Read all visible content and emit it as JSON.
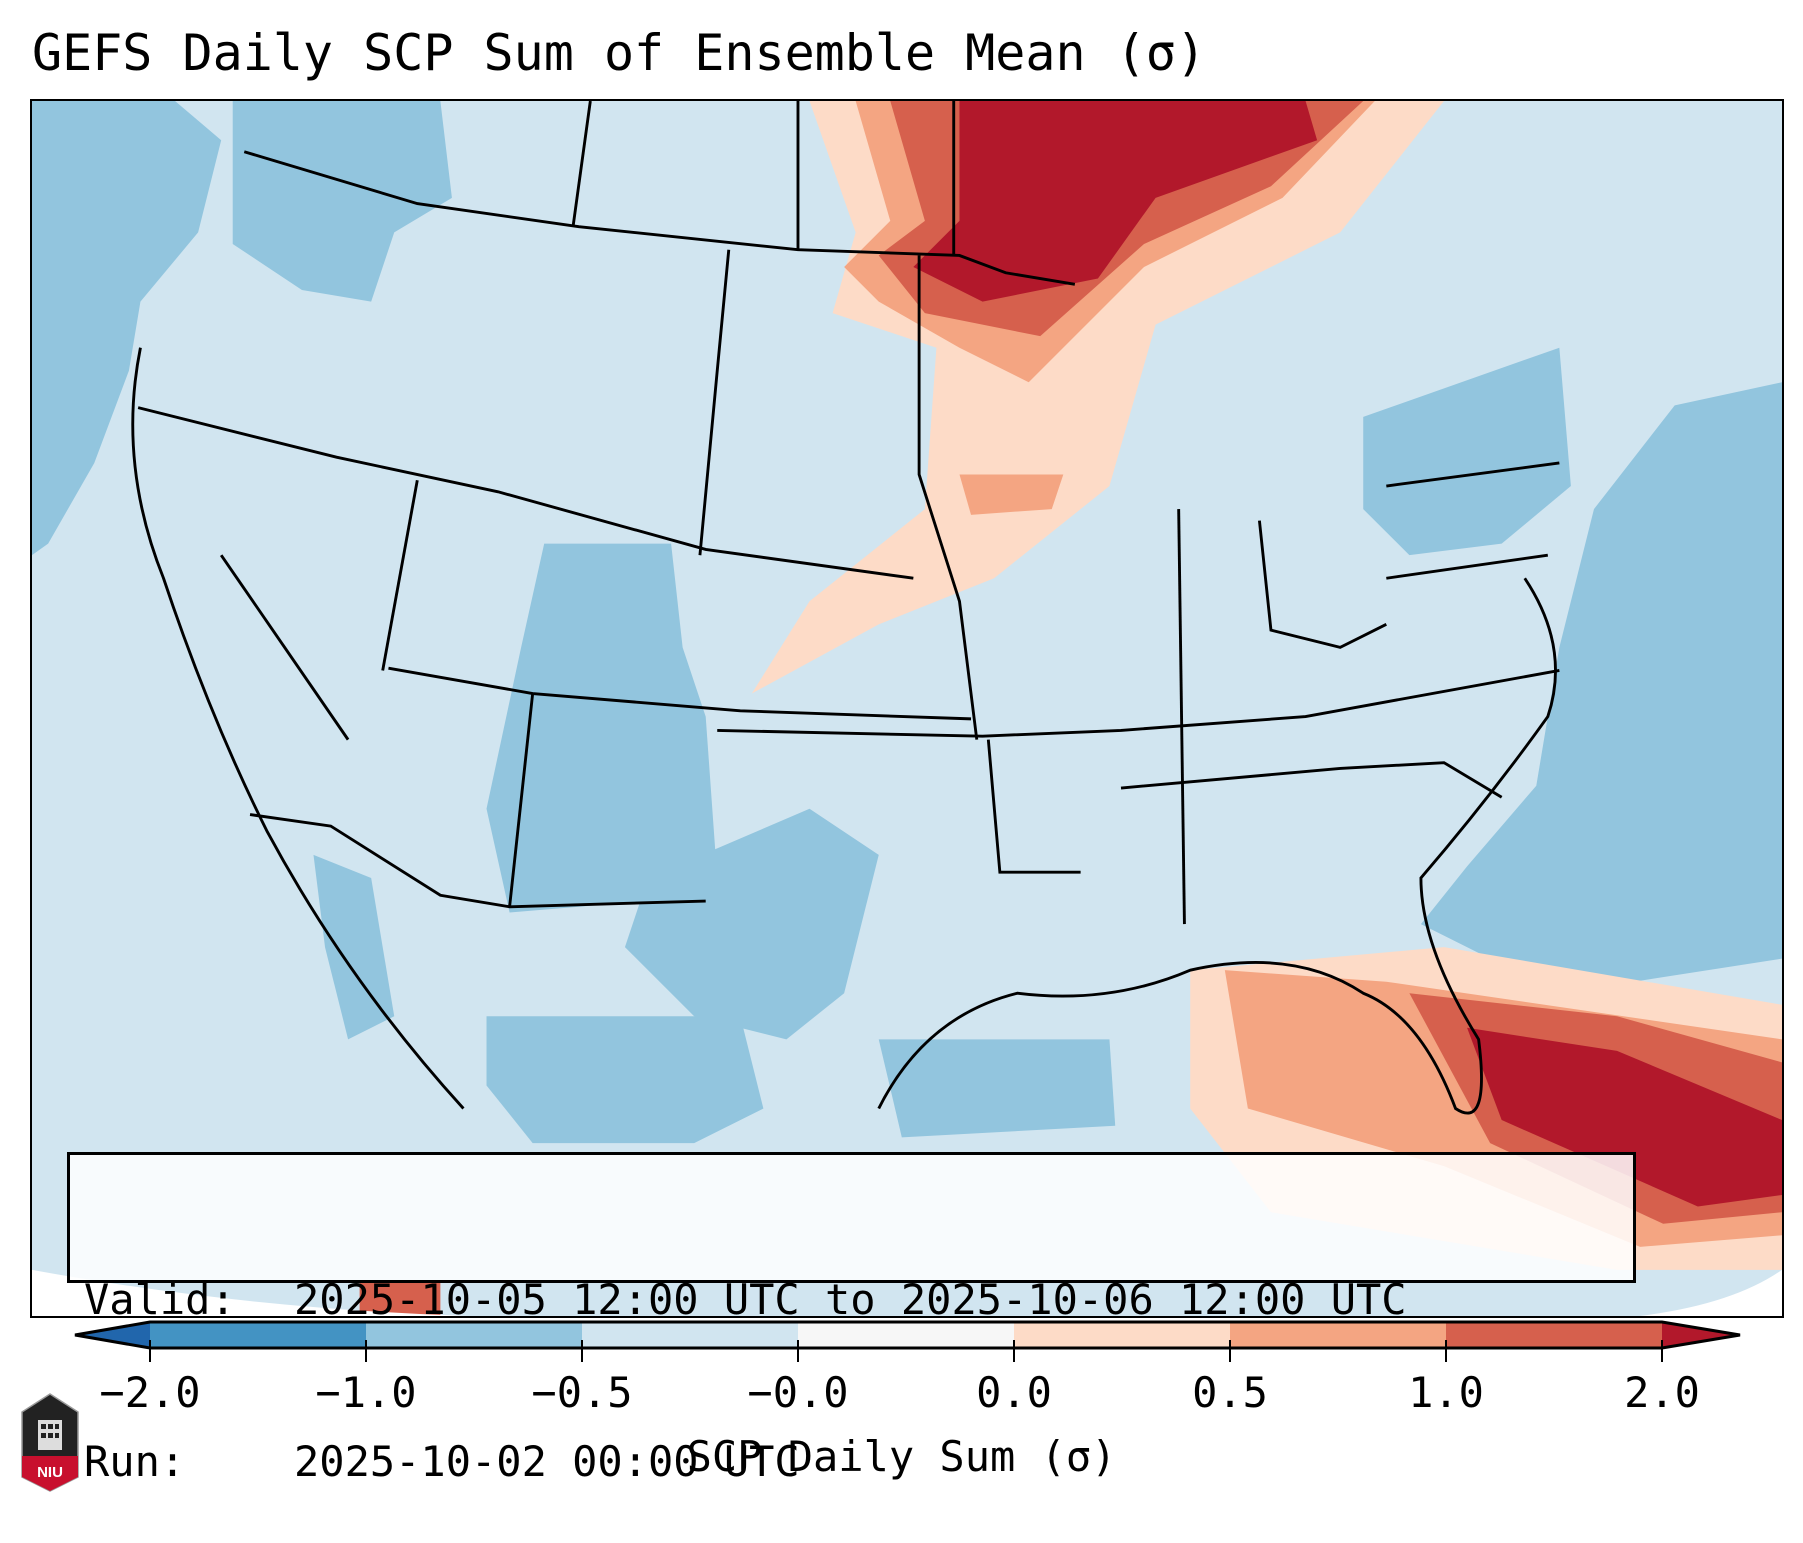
{
  "title": "GEFS Daily SCP Sum of Ensemble Mean (σ)",
  "info": {
    "valid_label": "Valid:",
    "valid_value": "2025-10-05 12:00 UTC to 2025-10-06 12:00 UTC",
    "run_label": "Run:",
    "run_value": "2025-10-02 00:00 UTC"
  },
  "colorbar": {
    "label": "SCP Daily Sum (σ)",
    "ticks": [
      "−2.0",
      "−1.0",
      "−0.5",
      "−0.0",
      "0.0",
      "0.5",
      "1.0",
      "2.0"
    ],
    "bin_colors": [
      "#4393c3",
      "#92c5de",
      "#d1e5f0",
      "#f7f7f7",
      "#fddbc7",
      "#f4a582",
      "#d6604d"
    ],
    "extend_low_color": "#2166ac",
    "extend_high_color": "#b2182b"
  },
  "logo": {
    "text": "NIU"
  }
}
